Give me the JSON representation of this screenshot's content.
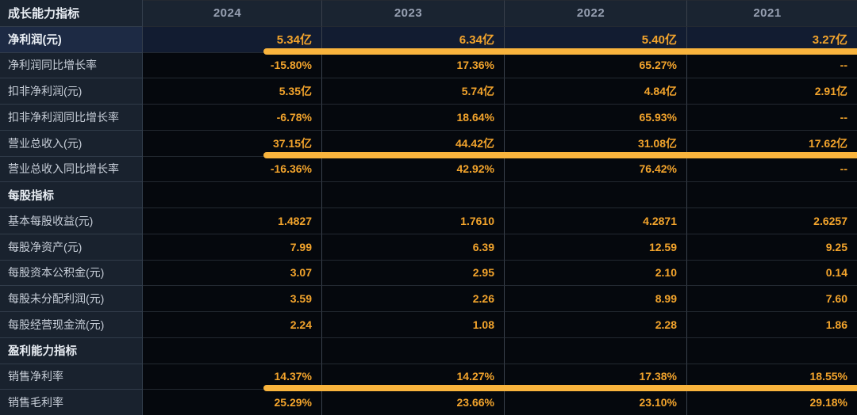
{
  "table": {
    "corner_label": "成长能力指标",
    "columns": [
      "2024",
      "2023",
      "2022",
      "2021"
    ],
    "rows": [
      {
        "label": "净利润(元)",
        "values": [
          "5.34亿",
          "6.34亿",
          "5.40亿",
          "3.27亿"
        ],
        "highlight": true,
        "underline": true
      },
      {
        "label": "净利润同比增长率",
        "values": [
          "-15.80%",
          "17.36%",
          "65.27%",
          "--"
        ]
      },
      {
        "label": "扣非净利润(元)",
        "values": [
          "5.35亿",
          "5.74亿",
          "4.84亿",
          "2.91亿"
        ]
      },
      {
        "label": "扣非净利润同比增长率",
        "values": [
          "-6.78%",
          "18.64%",
          "65.93%",
          "--"
        ]
      },
      {
        "label": "营业总收入(元)",
        "values": [
          "37.15亿",
          "44.42亿",
          "31.08亿",
          "17.62亿"
        ],
        "underline": true
      },
      {
        "label": "营业总收入同比增长率",
        "values": [
          "-16.36%",
          "42.92%",
          "76.42%",
          "--"
        ]
      },
      {
        "label": "每股指标",
        "values": [
          "",
          "",
          "",
          ""
        ],
        "section": true
      },
      {
        "label": "基本每股收益(元)",
        "values": [
          "1.4827",
          "1.7610",
          "4.2871",
          "2.6257"
        ]
      },
      {
        "label": "每股净资产(元)",
        "values": [
          "7.99",
          "6.39",
          "12.59",
          "9.25"
        ]
      },
      {
        "label": "每股资本公积金(元)",
        "values": [
          "3.07",
          "2.95",
          "2.10",
          "0.14"
        ]
      },
      {
        "label": "每股未分配利润(元)",
        "values": [
          "3.59",
          "2.26",
          "8.99",
          "7.60"
        ]
      },
      {
        "label": "每股经营现金流(元)",
        "values": [
          "2.24",
          "1.08",
          "2.28",
          "1.86"
        ]
      },
      {
        "label": "盈利能力指标",
        "values": [
          "",
          "",
          "",
          ""
        ],
        "section": true
      },
      {
        "label": "销售净利率",
        "values": [
          "14.37%",
          "14.27%",
          "17.38%",
          "18.55%"
        ],
        "underline": true
      },
      {
        "label": "销售毛利率",
        "values": [
          "25.29%",
          "23.66%",
          "23.10%",
          "29.18%"
        ]
      }
    ],
    "colors": {
      "header_bg": "#1a2431",
      "header_text": "#97a0b2",
      "label_bg": "#19222e",
      "label_text": "#c7ced8",
      "bold_text": "#e9eef4",
      "value_bg": "#05080d",
      "value_orange": "#f3a42c",
      "highlight_label_bg": "#1d2a44",
      "highlight_value_bg": "#121c31",
      "bar_orange": "#f9b43d"
    }
  }
}
